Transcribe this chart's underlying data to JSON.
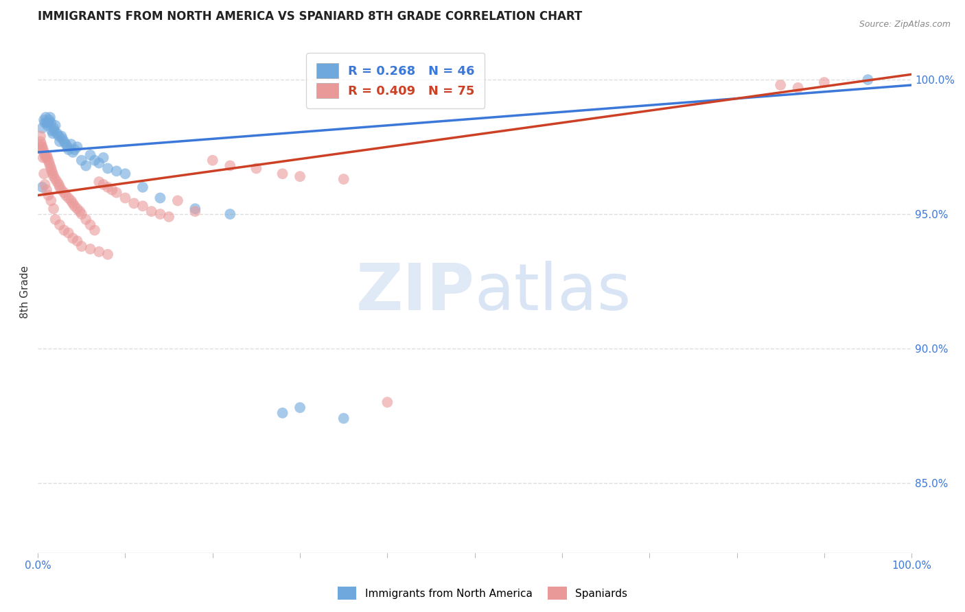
{
  "title": "IMMIGRANTS FROM NORTH AMERICA VS SPANIARD 8TH GRADE CORRELATION CHART",
  "source": "Source: ZipAtlas.com",
  "ylabel": "8th Grade",
  "ytick_labels": [
    "100.0%",
    "95.0%",
    "90.0%",
    "85.0%"
  ],
  "ytick_values": [
    1.0,
    0.95,
    0.9,
    0.85
  ],
  "xlim": [
    0.0,
    1.0
  ],
  "ylim": [
    0.824,
    1.018
  ],
  "legend_blue_text": "R = 0.268   N = 46",
  "legend_pink_text": "R = 0.409   N = 75",
  "blue_color": "#6fa8dc",
  "pink_color": "#ea9999",
  "blue_line_color": "#3c78d8",
  "pink_line_color": "#cc4125",
  "blue_scatter_x": [
    0.005,
    0.007,
    0.008,
    0.009,
    0.01,
    0.011,
    0.012,
    0.013,
    0.014,
    0.015,
    0.016,
    0.017,
    0.018,
    0.019,
    0.02,
    0.022,
    0.024,
    0.025,
    0.027,
    0.028,
    0.03,
    0.032,
    0.034,
    0.035,
    0.038,
    0.04,
    0.042,
    0.045,
    0.05,
    0.055,
    0.06,
    0.065,
    0.07,
    0.075,
    0.08,
    0.09,
    0.1,
    0.12,
    0.14,
    0.18,
    0.22,
    0.28,
    0.3,
    0.35,
    0.95,
    0.005
  ],
  "blue_scatter_y": [
    0.982,
    0.985,
    0.984,
    0.986,
    0.984,
    0.983,
    0.984,
    0.985,
    0.986,
    0.984,
    0.981,
    0.98,
    0.982,
    0.981,
    0.983,
    0.98,
    0.979,
    0.977,
    0.979,
    0.978,
    0.977,
    0.976,
    0.975,
    0.974,
    0.976,
    0.973,
    0.974,
    0.975,
    0.97,
    0.968,
    0.972,
    0.97,
    0.969,
    0.971,
    0.967,
    0.966,
    0.965,
    0.96,
    0.956,
    0.952,
    0.95,
    0.876,
    0.878,
    0.874,
    1.0,
    0.96
  ],
  "pink_scatter_x": [
    0.003,
    0.004,
    0.005,
    0.006,
    0.007,
    0.008,
    0.009,
    0.01,
    0.011,
    0.012,
    0.013,
    0.014,
    0.015,
    0.016,
    0.017,
    0.018,
    0.02,
    0.022,
    0.024,
    0.025,
    0.027,
    0.03,
    0.032,
    0.035,
    0.038,
    0.04,
    0.042,
    0.045,
    0.048,
    0.05,
    0.055,
    0.06,
    0.065,
    0.07,
    0.075,
    0.08,
    0.085,
    0.09,
    0.1,
    0.11,
    0.12,
    0.13,
    0.14,
    0.15,
    0.16,
    0.18,
    0.2,
    0.22,
    0.25,
    0.28,
    0.3,
    0.35,
    0.4,
    0.003,
    0.004,
    0.006,
    0.007,
    0.008,
    0.01,
    0.012,
    0.015,
    0.018,
    0.02,
    0.025,
    0.03,
    0.035,
    0.04,
    0.045,
    0.05,
    0.06,
    0.07,
    0.08,
    0.85,
    0.87,
    0.9
  ],
  "pink_scatter_y": [
    0.977,
    0.976,
    0.975,
    0.974,
    0.973,
    0.972,
    0.971,
    0.972,
    0.971,
    0.97,
    0.969,
    0.968,
    0.967,
    0.966,
    0.965,
    0.964,
    0.963,
    0.962,
    0.961,
    0.96,
    0.959,
    0.958,
    0.957,
    0.956,
    0.955,
    0.954,
    0.953,
    0.952,
    0.951,
    0.95,
    0.948,
    0.946,
    0.944,
    0.962,
    0.961,
    0.96,
    0.959,
    0.958,
    0.956,
    0.954,
    0.953,
    0.951,
    0.95,
    0.949,
    0.955,
    0.951,
    0.97,
    0.968,
    0.967,
    0.965,
    0.964,
    0.963,
    0.88,
    0.979,
    0.975,
    0.971,
    0.965,
    0.961,
    0.959,
    0.957,
    0.955,
    0.952,
    0.948,
    0.946,
    0.944,
    0.943,
    0.941,
    0.94,
    0.938,
    0.937,
    0.936,
    0.935,
    0.998,
    0.997,
    0.999
  ],
  "blue_trend": [
    0.0,
    1.0,
    0.973,
    0.998
  ],
  "pink_trend": [
    0.0,
    1.0,
    0.957,
    1.002
  ],
  "watermark_zip": "ZIP",
  "watermark_atlas": "atlas",
  "grid_color": "#dddddd",
  "background_color": "#ffffff"
}
